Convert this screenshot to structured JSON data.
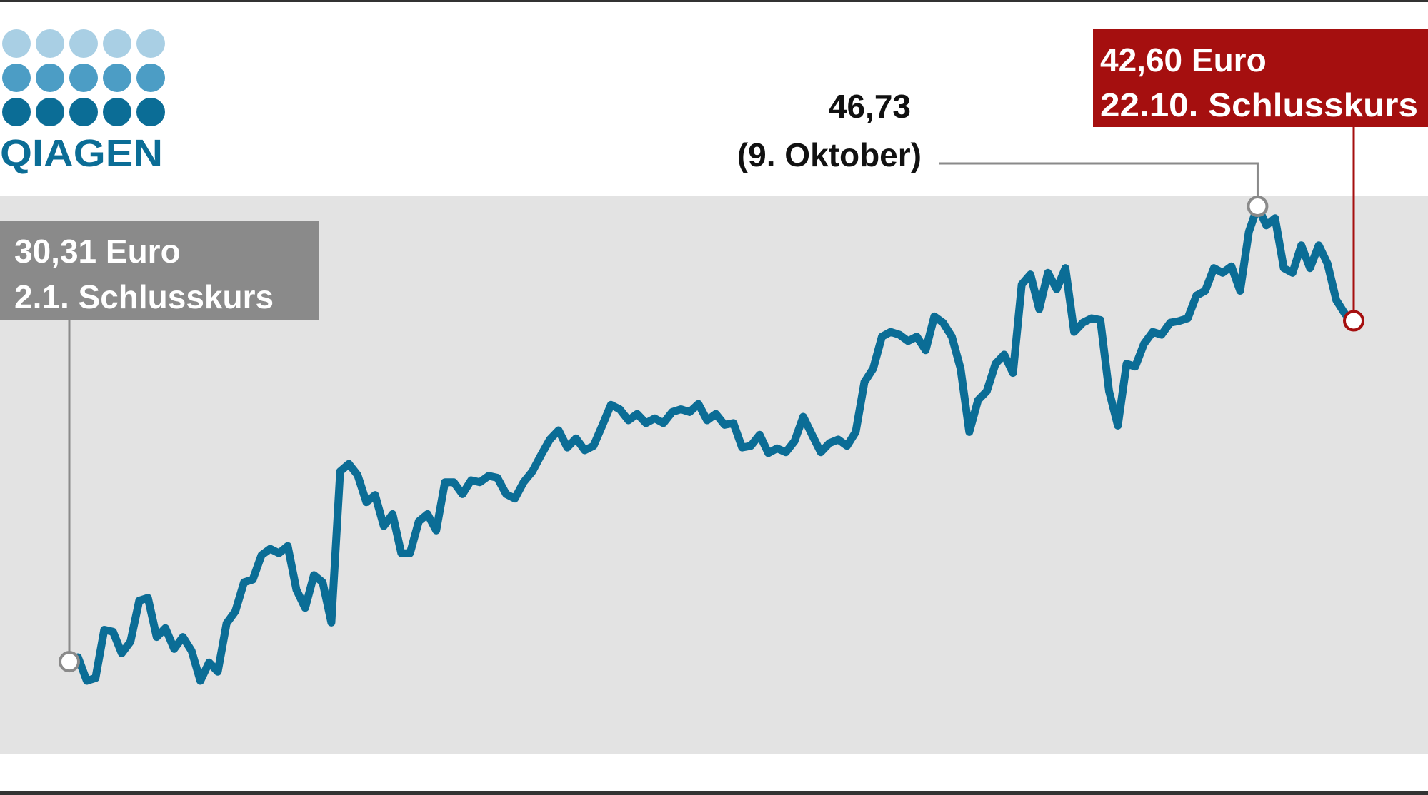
{
  "chart_data": {
    "type": "line",
    "color": "#0b6d96",
    "logo": "QIAGEN",
    "values": [
      30.31,
      30.47,
      29.62,
      29.72,
      31.46,
      31.39,
      30.61,
      31.03,
      32.51,
      32.61,
      31.2,
      31.52,
      30.77,
      31.2,
      30.7,
      29.62,
      30.28,
      29.95,
      31.69,
      32.12,
      33.17,
      33.27,
      34.15,
      34.38,
      34.22,
      34.48,
      32.9,
      32.25,
      33.43,
      33.17,
      31.72,
      37.17,
      37.44,
      37.04,
      36.06,
      36.32,
      35.2,
      35.63,
      34.22,
      34.22,
      35.37,
      35.63,
      35.04,
      36.78,
      36.78,
      36.35,
      36.85,
      36.78,
      37.01,
      36.94,
      36.35,
      36.19,
      36.78,
      37.17,
      37.76,
      38.32,
      38.65,
      38.03,
      38.36,
      37.93,
      38.09,
      38.82,
      39.57,
      39.41,
      39.01,
      39.24,
      38.91,
      39.08,
      38.91,
      39.31,
      39.41,
      39.31,
      39.6,
      39.01,
      39.24,
      38.85,
      38.91,
      38.03,
      38.09,
      38.49,
      37.83,
      38.0,
      37.86,
      38.26,
      39.14,
      38.49,
      37.86,
      38.19,
      38.32,
      38.09,
      38.59,
      40.39,
      40.88,
      42.03,
      42.2,
      42.1,
      41.87,
      42.03,
      41.54,
      42.76,
      42.53,
      42.03,
      40.88,
      38.59,
      39.74,
      40.06,
      41.05,
      41.38,
      40.72,
      43.91,
      44.27,
      43.02,
      44.33,
      43.74,
      44.5,
      42.2,
      42.53,
      42.69,
      42.63,
      40.06,
      38.82,
      41.05,
      40.95,
      41.77,
      42.2,
      42.1,
      42.53,
      42.59,
      42.69,
      43.51,
      43.68,
      44.5,
      44.33,
      44.56,
      43.68,
      45.81,
      46.73,
      46.04,
      46.3,
      44.5,
      44.33,
      45.32,
      44.5,
      45.32,
      44.66,
      43.35,
      42.85,
      42.6
    ],
    "annotations": [
      {
        "label": "30,31 Euro",
        "note": "2.1. Schlusskurs",
        "color": "#8a8a8a"
      },
      {
        "label": "46,73",
        "note": "(9. Oktober)",
        "color": "#8a8a8a"
      },
      {
        "label": "42,60 Euro",
        "note": "22.10. Schlusskurs",
        "color": "#a50f0f"
      }
    ]
  }
}
